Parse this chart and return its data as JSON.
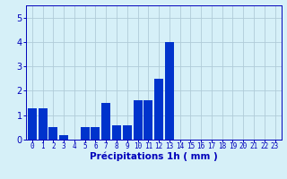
{
  "bar_heights": [
    1.3,
    1.3,
    0.5,
    0.2,
    0.0,
    0.5,
    0.5,
    1.5,
    0.6,
    0.6,
    1.6,
    1.6,
    2.5,
    4.0,
    0.0,
    0.0,
    0.0,
    0.0,
    0.0,
    0.0,
    0.0,
    0.0,
    0.0,
    0.0
  ],
  "hours": [
    0,
    1,
    2,
    3,
    4,
    5,
    6,
    7,
    8,
    9,
    10,
    11,
    12,
    13,
    14,
    15,
    16,
    17,
    18,
    19,
    20,
    21,
    22,
    23
  ],
  "bar_color": "#0033cc",
  "bg_color": "#d6f0f8",
  "grid_color": "#b0ccd8",
  "xlabel": "Précipitations 1h ( mm )",
  "ylim": [
    0,
    5.5
  ],
  "yticks": [
    0,
    1,
    2,
    3,
    4,
    5
  ],
  "axis_color": "#0000bb",
  "tick_fontsize": 5.5,
  "xlabel_fontsize": 7.5
}
